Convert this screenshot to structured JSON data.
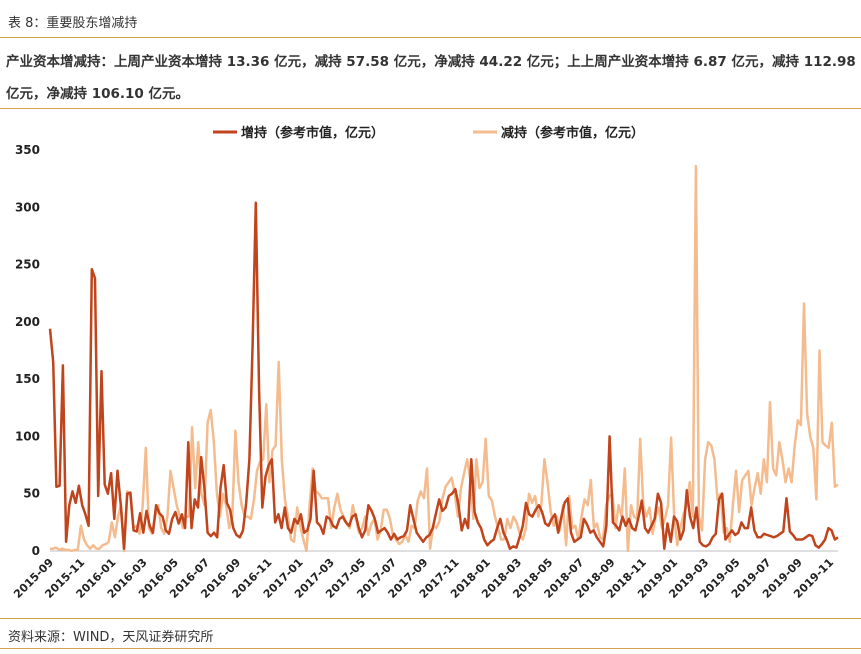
{
  "caption": "表 8：重要股东增减持",
  "summary": "产业资本增减持：上周产业资本增持 13.36 亿元，减持 57.58 亿元，净减持 44.22 亿元；上上周产业资本增持 6.87 亿元，减持 112.98 亿元，净减持 106.10 亿元。",
  "source": "资料来源：WIND，天风证券研究所",
  "colors": {
    "increase": "#c0441c",
    "decrease": "#f4bb8e",
    "rule": "#d6a04a"
  },
  "chart_data": {
    "type": "line",
    "ylim": [
      0,
      350
    ],
    "yticks": [
      0,
      50,
      100,
      150,
      200,
      250,
      300,
      350
    ],
    "x_tick_labels": [
      "2015-09",
      "2015-11",
      "2016-01",
      "2016-03",
      "2016-05",
      "2016-07",
      "2016-09",
      "2016-11",
      "2017-01",
      "2017-03",
      "2017-05",
      "2017-07",
      "2017-09",
      "2017-11",
      "2018-01",
      "2018-03",
      "2018-05",
      "2018-07",
      "2018-09",
      "2018-11",
      "2019-01",
      "2019-03",
      "2019-05",
      "2019-07",
      "2019-09",
      "2019-11"
    ],
    "legend_position": "top",
    "series": [
      {
        "name": "增持（参考市值，亿元）",
        "color": "#c0441c",
        "values": [
          194,
          165,
          56,
          57,
          162,
          8,
          40,
          52,
          42,
          57,
          40,
          32,
          22,
          246,
          238,
          48,
          157,
          58,
          50,
          68,
          28,
          70,
          40,
          2,
          50,
          51,
          18,
          17,
          33,
          16,
          35,
          22,
          16,
          40,
          33,
          30,
          18,
          15,
          28,
          34,
          24,
          32,
          20,
          95,
          20,
          45,
          38,
          82,
          55,
          16,
          13,
          16,
          12,
          55,
          75,
          42,
          36,
          20,
          14,
          12,
          18,
          42,
          80,
          180,
          304,
          140,
          38,
          65,
          75,
          80,
          25,
          32,
          20,
          38,
          20,
          16,
          28,
          24,
          32,
          16,
          18,
          28,
          70,
          25,
          22,
          15,
          30,
          28,
          22,
          20,
          28,
          30,
          25,
          22,
          30,
          32,
          20,
          12,
          18,
          40,
          35,
          28,
          16,
          18,
          20,
          16,
          10,
          15,
          10,
          12,
          13,
          18,
          40,
          28,
          16,
          12,
          8,
          12,
          14,
          20,
          33,
          45,
          35,
          38,
          48,
          50,
          54,
          40,
          18,
          28,
          20,
          80,
          34,
          25,
          20,
          10,
          5,
          8,
          10,
          20,
          28,
          16,
          10,
          2,
          4,
          3,
          12,
          22,
          42,
          32,
          30,
          36,
          40,
          34,
          24,
          22,
          28,
          32,
          16,
          30,
          42,
          46,
          16,
          8,
          10,
          12,
          28,
          23,
          16,
          18,
          12,
          8,
          4,
          22,
          100,
          25,
          22,
          18,
          30,
          22,
          28,
          20,
          18,
          30,
          44,
          20,
          16,
          22,
          28,
          50,
          42,
          2,
          24,
          8,
          30,
          26,
          10,
          18,
          53,
          30,
          20,
          38,
          8,
          5,
          4,
          6,
          12,
          15,
          45,
          50,
          10,
          14,
          18,
          14,
          16,
          25,
          20,
          20,
          38,
          18,
          12,
          12,
          15,
          14,
          13,
          12,
          13,
          15,
          17,
          46,
          17,
          14,
          10,
          10,
          10,
          12,
          14,
          13,
          5,
          3,
          6,
          10,
          20,
          18,
          10,
          12
        ]
      },
      {
        "name": "减持（参考市值，亿元）",
        "color": "#f4bb8e",
        "values": [
          2,
          2,
          3,
          1,
          2,
          1,
          1,
          0,
          1,
          1,
          22,
          10,
          5,
          2,
          5,
          2,
          2,
          5,
          6,
          8,
          25,
          12,
          30,
          40,
          0,
          52,
          48,
          20,
          22,
          15,
          40,
          90,
          20,
          15,
          30,
          40,
          20,
          15,
          30,
          70,
          55,
          40,
          30,
          20,
          30,
          30,
          108,
          55,
          95,
          50,
          40,
          112,
          123,
          96,
          50,
          30,
          50,
          40,
          20,
          30,
          105,
          60,
          40,
          30,
          30,
          28,
          45,
          70,
          78,
          80,
          128,
          60,
          88,
          92,
          165,
          80,
          45,
          30,
          10,
          8,
          38,
          22,
          10,
          0,
          40,
          72,
          52,
          50,
          46,
          46,
          46,
          20,
          38,
          50,
          36,
          30,
          24,
          20,
          40,
          28,
          16,
          20,
          30,
          14,
          24,
          28,
          10,
          18,
          36,
          36,
          28,
          14,
          10,
          6,
          8,
          14,
          8,
          22,
          20,
          44,
          52,
          46,
          72,
          2,
          22,
          20,
          26,
          46,
          56,
          60,
          64,
          50,
          30,
          55,
          68,
          80,
          62,
          28,
          80,
          55,
          60,
          98,
          48,
          44,
          30,
          20,
          10,
          10,
          28,
          20,
          30,
          25,
          15,
          10,
          20,
          50,
          42,
          48,
          30,
          40,
          80,
          60,
          35,
          22,
          30,
          18,
          40,
          5,
          48,
          20,
          22,
          10,
          30,
          45,
          40,
          62,
          20,
          24,
          12,
          10,
          40,
          48,
          50,
          20,
          40,
          30,
          72,
          0,
          40,
          30,
          28,
          98,
          40,
          30,
          38,
          15,
          30,
          38,
          20,
          28,
          40,
          99,
          30,
          5,
          20,
          32,
          40,
          60,
          30,
          336,
          30,
          18,
          80,
          95,
          92,
          80,
          45,
          50,
          16,
          20,
          8,
          40,
          70,
          34,
          62,
          66,
          70,
          40,
          55,
          68,
          50,
          80,
          60,
          130,
          72,
          66,
          95,
          80,
          60,
          72,
          60,
          92,
          114,
          110,
          216,
          120,
          100,
          90,
          45,
          175,
          95,
          92,
          90,
          112,
          56,
          58
        ]
      }
    ]
  }
}
